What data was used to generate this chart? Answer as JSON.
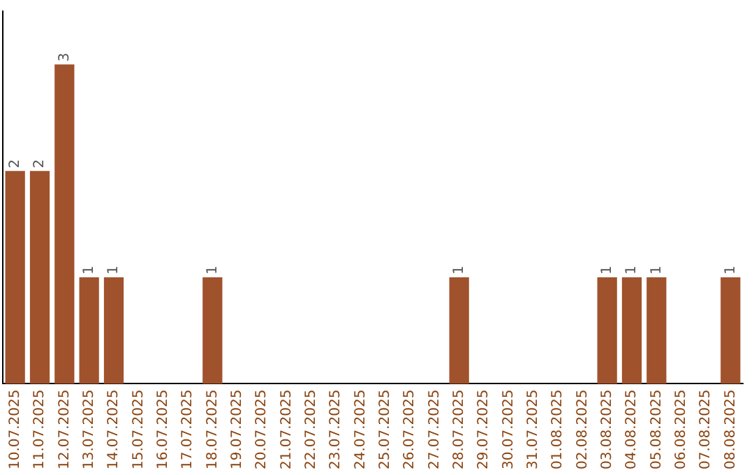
{
  "chart_data": {
    "type": "bar",
    "categories": [
      "10.07.2025",
      "11.07.2025",
      "12.07.2025",
      "13.07.2025",
      "14.07.2025",
      "15.07.2025",
      "16.07.2025",
      "17.07.2025",
      "18.07.2025",
      "19.07.2025",
      "20.07.2025",
      "21.07.2025",
      "22.07.2025",
      "23.07.2025",
      "24.07.2025",
      "25.07.2025",
      "26.07.2025",
      "27.07.2025",
      "28.07.2025",
      "29.07.2025",
      "30.07.2025",
      "31.07.2025",
      "01.08.2025",
      "02.08.2025",
      "03.08.2025",
      "04.08.2025",
      "05.08.2025",
      "06.08.2025",
      "07.08.2025",
      "08.08.2025"
    ],
    "values": [
      2,
      2,
      3,
      1,
      1,
      0,
      0,
      0,
      1,
      0,
      0,
      0,
      0,
      0,
      0,
      0,
      0,
      0,
      1,
      0,
      0,
      0,
      0,
      0,
      1,
      1,
      1,
      0,
      0,
      1
    ],
    "value_labels": [
      "2",
      "2",
      "3",
      "1",
      "1",
      null,
      null,
      null,
      "1",
      null,
      null,
      null,
      null,
      null,
      null,
      null,
      null,
      null,
      "1",
      null,
      null,
      null,
      null,
      null,
      "1",
      "1",
      "1",
      null,
      null,
      "1"
    ],
    "color": "#a0522d",
    "grid": false,
    "legend": false,
    "tick_labels": "x"
  }
}
